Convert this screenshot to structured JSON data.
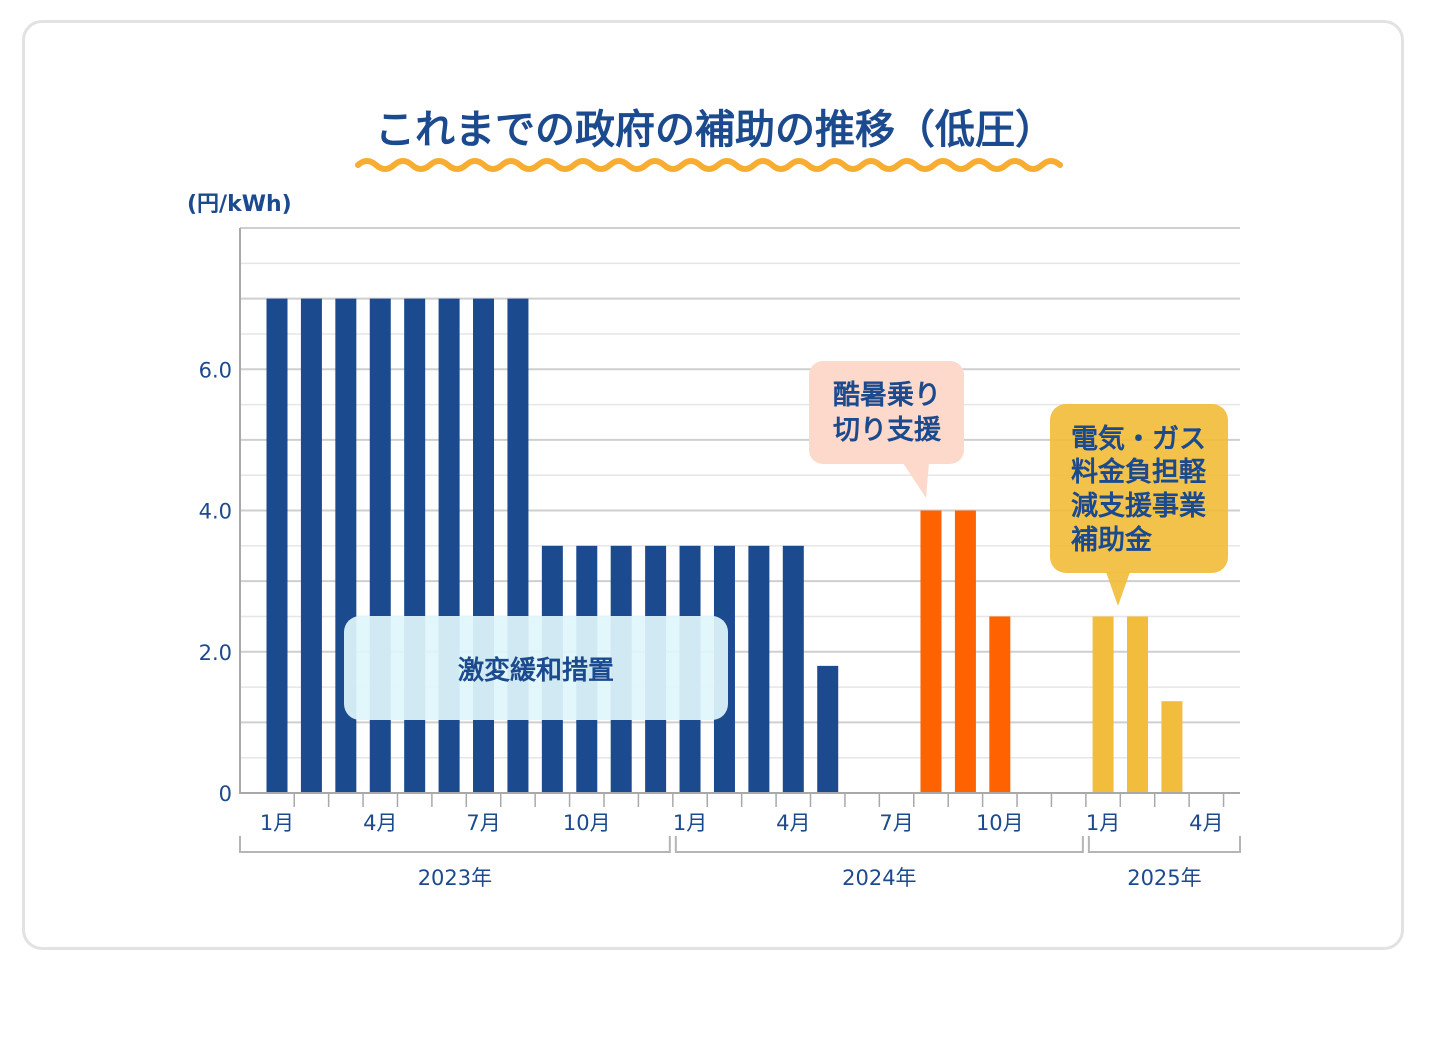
{
  "chart_data": {
    "type": "bar",
    "title": "これまでの政府の補助の推移（低圧）",
    "ylabel": "(円/kWh)",
    "ylim": [
      0,
      8.0
    ],
    "yticks": [
      "0",
      "2.0",
      "4.0",
      "6.0"
    ],
    "ytick_values": [
      0,
      2,
      4,
      6
    ],
    "gridlines": true,
    "xtick_labels": [
      {
        "i": 0,
        "label": "1月"
      },
      {
        "i": 3,
        "label": "4月"
      },
      {
        "i": 6,
        "label": "7月"
      },
      {
        "i": 9,
        "label": "10月"
      },
      {
        "i": 12,
        "label": "1月"
      },
      {
        "i": 15,
        "label": "4月"
      },
      {
        "i": 18,
        "label": "7月"
      },
      {
        "i": 21,
        "label": "10月"
      },
      {
        "i": 24,
        "label": "1月"
      },
      {
        "i": 27,
        "label": "4月"
      }
    ],
    "years": [
      {
        "label": "2023年",
        "start": 0,
        "end": 11
      },
      {
        "label": "2024年",
        "start": 12,
        "end": 23
      },
      {
        "label": "2025年",
        "start": 24,
        "end": 27
      }
    ],
    "months_total": 28,
    "series": [
      {
        "name": "激変緩和措置",
        "color": "#1c4a8e",
        "values": [
          7.0,
          7.0,
          7.0,
          7.0,
          7.0,
          7.0,
          7.0,
          7.0,
          3.5,
          3.5,
          3.5,
          3.5,
          3.5,
          3.5,
          3.5,
          3.5,
          1.8,
          null,
          null,
          null,
          null,
          null,
          null,
          null,
          null,
          null,
          null,
          null
        ]
      },
      {
        "name": "酷暑乗り切り支援",
        "color": "#ff6200",
        "values": [
          null,
          null,
          null,
          null,
          null,
          null,
          null,
          null,
          null,
          null,
          null,
          null,
          null,
          null,
          null,
          null,
          null,
          null,
          null,
          4.0,
          4.0,
          2.5,
          null,
          null,
          null,
          null,
          null,
          null
        ]
      },
      {
        "name": "電気・ガス料金負担軽減支援事業補助金",
        "color": "#f2bd3c",
        "values": [
          null,
          null,
          null,
          null,
          null,
          null,
          null,
          null,
          null,
          null,
          null,
          null,
          null,
          null,
          null,
          null,
          null,
          null,
          null,
          null,
          null,
          null,
          null,
          null,
          2.5,
          2.5,
          1.3,
          null
        ]
      }
    ],
    "annotations": [
      {
        "id": "gekihen",
        "lines": [
          "激変緩和措置"
        ]
      },
      {
        "id": "kosho",
        "lines": [
          "酷暑乗り",
          "切り支援"
        ]
      },
      {
        "id": "denki",
        "lines": [
          "電気・ガス",
          "料金負担軽",
          "減支援事業",
          "補助金"
        ]
      }
    ]
  }
}
